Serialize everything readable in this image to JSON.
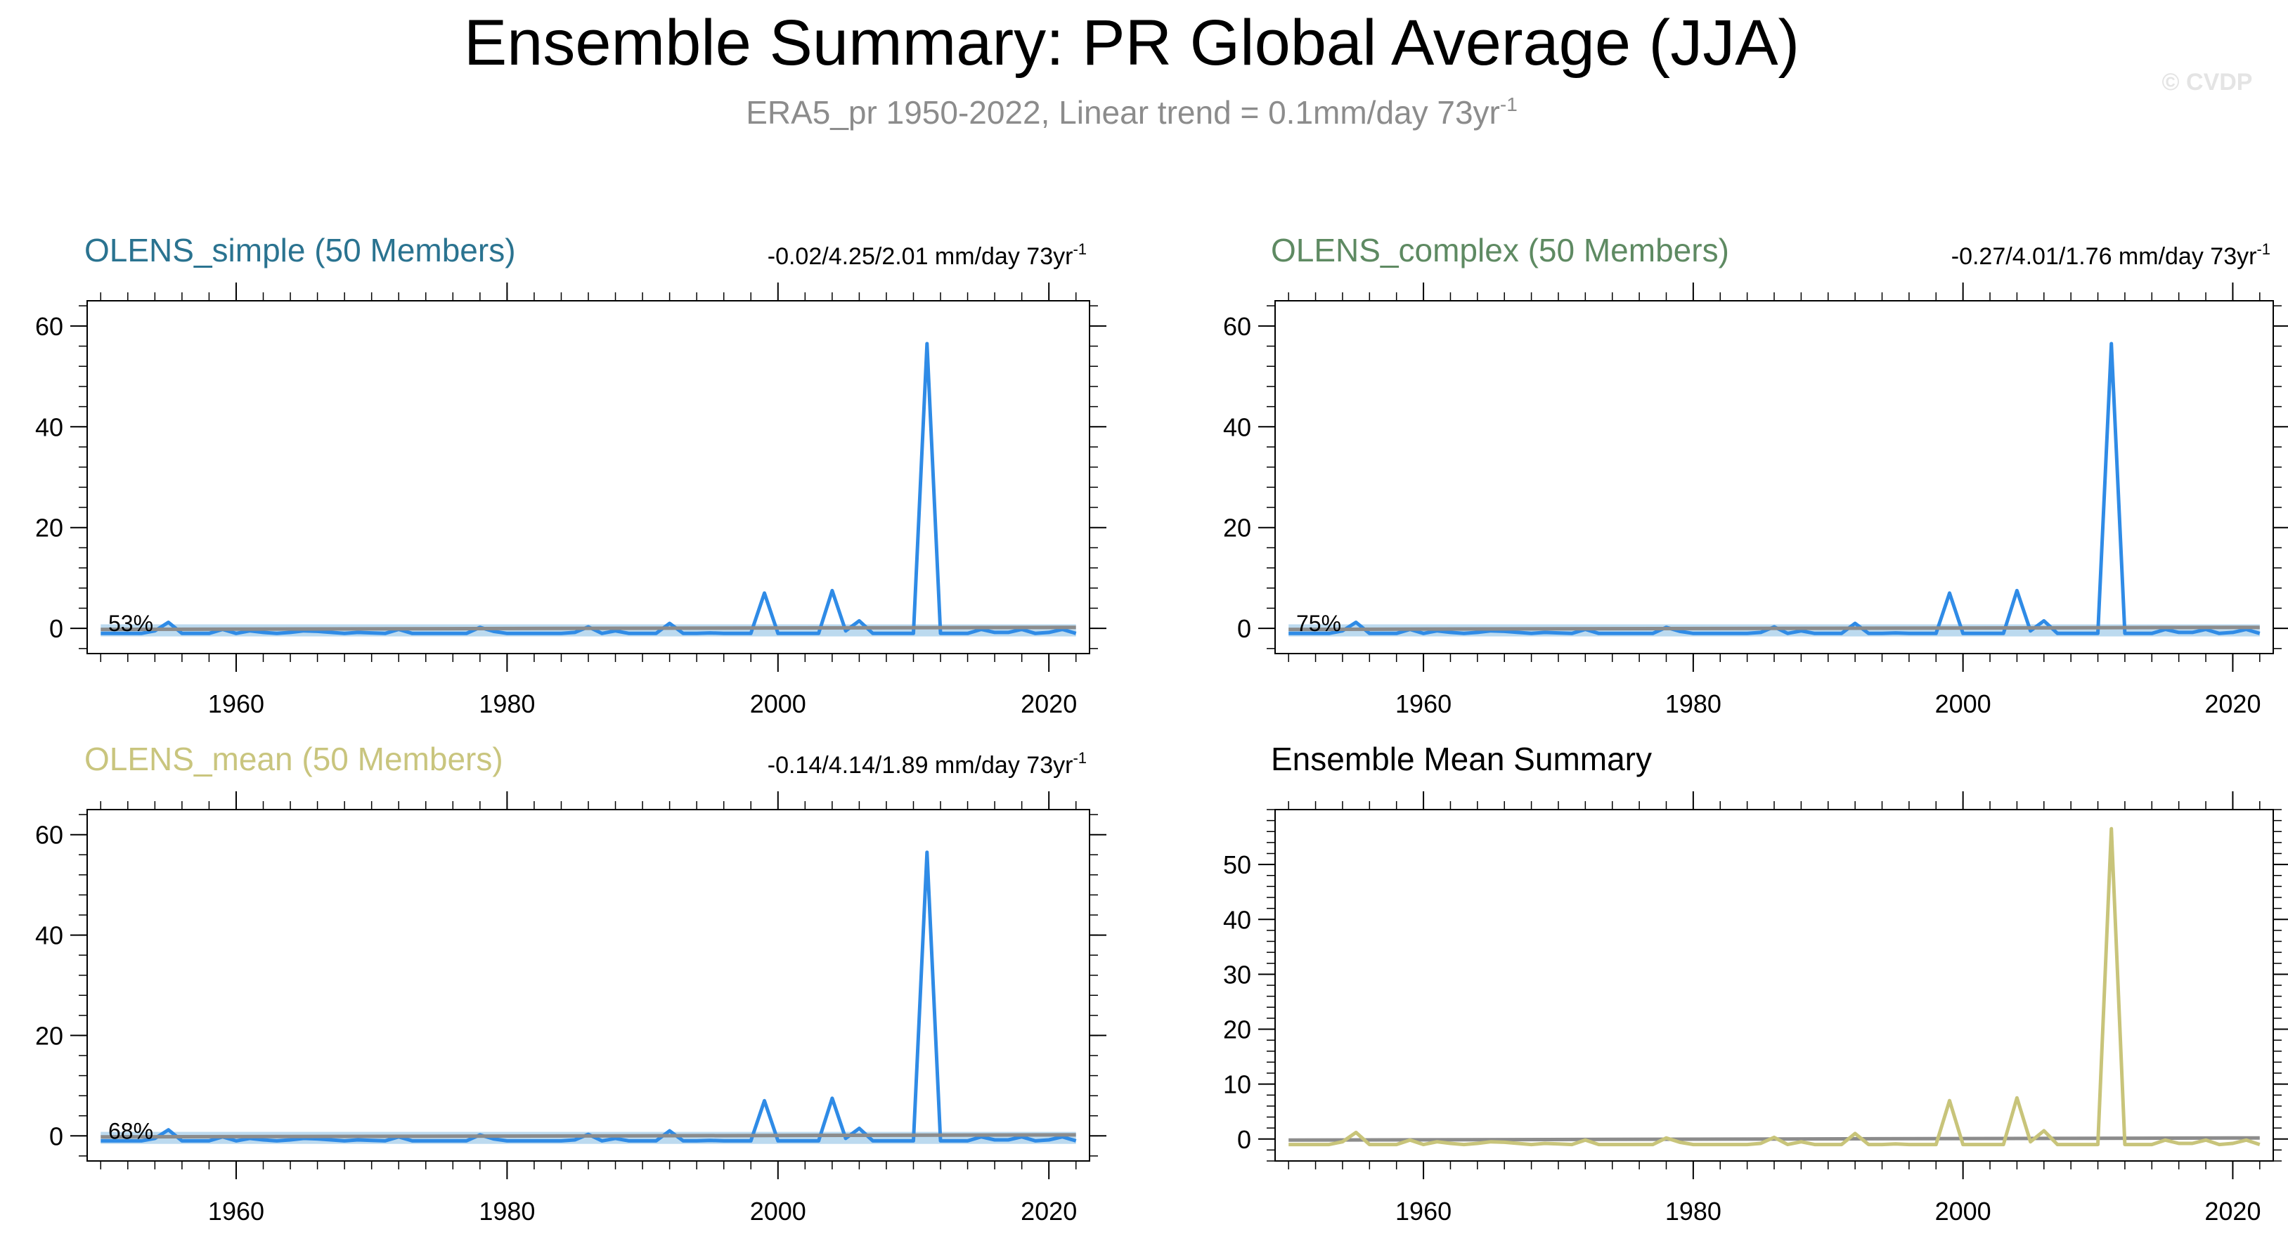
{
  "header": {
    "title": "Ensemble Summary: PR Global Average (JJA)",
    "subtitle": "ERA5_pr 1950-2022, Linear trend = 0.1mm/day 73yr",
    "subtitle_sup": "-1",
    "watermark": "© CVDP"
  },
  "colors": {
    "series_blue": "#2f8be6",
    "ensemble_tan": "#c8c47a",
    "obs_gray": "#8c8c8c",
    "band_blue": "#b0d4ec",
    "title_simple": "#2a7390",
    "title_complex": "#5e8a62",
    "title_mean": "#c9c57e"
  },
  "chart_data": [
    {
      "type": "line",
      "title": "OLENS_simple (50 Members)",
      "stats": "-0.02/4.25/2.01 mm/day 73yr",
      "stats_sup": "-1",
      "percent_label": "53%",
      "xlim": [
        1949,
        2023
      ],
      "ylim": [
        -5,
        65
      ],
      "yticks": [
        0,
        20,
        40,
        60
      ],
      "xticks": [
        1960,
        1980,
        2000,
        2020
      ],
      "series": [
        {
          "style": "member",
          "x": [
            1950,
            1951,
            1952,
            1953,
            1954,
            1955,
            1956,
            1957,
            1958,
            1959,
            1960,
            1961,
            1962,
            1963,
            1964,
            1965,
            1966,
            1967,
            1968,
            1969,
            1970,
            1971,
            1972,
            1973,
            1974,
            1975,
            1976,
            1977,
            1978,
            1979,
            1980,
            1981,
            1982,
            1983,
            1984,
            1985,
            1986,
            1987,
            1988,
            1989,
            1990,
            1991,
            1992,
            1993,
            1994,
            1995,
            1996,
            1997,
            1998,
            1999,
            2000,
            2001,
            2002,
            2003,
            2004,
            2005,
            2006,
            2007,
            2008,
            2009,
            2010,
            2011,
            2012,
            2013,
            2014,
            2015,
            2016,
            2017,
            2018,
            2019,
            2020,
            2021,
            2022
          ],
          "values": [
            -1,
            -1,
            -1,
            -1,
            -0.5,
            1.2,
            -1,
            -1,
            -1,
            -0.2,
            -1,
            -0.5,
            -0.8,
            -1,
            -0.8,
            -0.5,
            -0.6,
            -0.8,
            -1,
            -0.8,
            -0.9,
            -1,
            -0.2,
            -1,
            -1,
            -1,
            -1,
            -1,
            0.2,
            -0.6,
            -1,
            -1,
            -1,
            -1,
            -1,
            -0.8,
            0.3,
            -1,
            -0.5,
            -1,
            -1,
            -1,
            1,
            -1,
            -1,
            -0.9,
            -1,
            -1,
            -1,
            7,
            -1,
            -1,
            -1,
            -1,
            7.5,
            -0.5,
            1.5,
            -1,
            -1,
            -1,
            -1,
            56.5,
            -1,
            -1,
            -1,
            -0.2,
            -0.8,
            -0.8,
            -0.2,
            -1,
            -0.8,
            -0.2,
            -1
          ]
        },
        {
          "style": "observed",
          "x": [
            1950,
            2022
          ],
          "values": [
            -0.2,
            0.2
          ]
        }
      ]
    },
    {
      "type": "line",
      "title": "OLENS_complex (50 Members)",
      "stats": "-0.27/4.01/1.76 mm/day 73yr",
      "stats_sup": "-1",
      "percent_label": "75%",
      "xlim": [
        1949,
        2023
      ],
      "ylim": [
        -5,
        65
      ],
      "yticks": [
        0,
        20,
        40,
        60
      ],
      "xticks": [
        1960,
        1980,
        2000,
        2020
      ],
      "series": [
        {
          "style": "member",
          "x": [
            1950,
            1951,
            1952,
            1953,
            1954,
            1955,
            1956,
            1957,
            1958,
            1959,
            1960,
            1961,
            1962,
            1963,
            1964,
            1965,
            1966,
            1967,
            1968,
            1969,
            1970,
            1971,
            1972,
            1973,
            1974,
            1975,
            1976,
            1977,
            1978,
            1979,
            1980,
            1981,
            1982,
            1983,
            1984,
            1985,
            1986,
            1987,
            1988,
            1989,
            1990,
            1991,
            1992,
            1993,
            1994,
            1995,
            1996,
            1997,
            1998,
            1999,
            2000,
            2001,
            2002,
            2003,
            2004,
            2005,
            2006,
            2007,
            2008,
            2009,
            2010,
            2011,
            2012,
            2013,
            2014,
            2015,
            2016,
            2017,
            2018,
            2019,
            2020,
            2021,
            2022
          ],
          "values": [
            -1,
            -1,
            -1,
            -1,
            -0.5,
            1.2,
            -1,
            -1,
            -1,
            -0.2,
            -1,
            -0.5,
            -0.8,
            -1,
            -0.8,
            -0.5,
            -0.6,
            -0.8,
            -1,
            -0.8,
            -0.9,
            -1,
            -0.2,
            -1,
            -1,
            -1,
            -1,
            -1,
            0.2,
            -0.6,
            -1,
            -1,
            -1,
            -1,
            -1,
            -0.8,
            0.3,
            -1,
            -0.5,
            -1,
            -1,
            -1,
            1,
            -1,
            -1,
            -0.9,
            -1,
            -1,
            -1,
            7,
            -1,
            -1,
            -1,
            -1,
            7.5,
            -0.5,
            1.5,
            -1,
            -1,
            -1,
            -1,
            56.5,
            -1,
            -1,
            -1,
            -0.2,
            -0.8,
            -0.8,
            -0.2,
            -1,
            -0.8,
            -0.2,
            -1
          ]
        },
        {
          "style": "observed",
          "x": [
            1950,
            2022
          ],
          "values": [
            -0.2,
            0.2
          ]
        }
      ]
    },
    {
      "type": "line",
      "title": "OLENS_mean (50 Members)",
      "stats": "-0.14/4.14/1.89 mm/day 73yr",
      "stats_sup": "-1",
      "percent_label": "68%",
      "xlim": [
        1949,
        2023
      ],
      "ylim": [
        -5,
        65
      ],
      "yticks": [
        0,
        20,
        40,
        60
      ],
      "xticks": [
        1960,
        1980,
        2000,
        2020
      ],
      "series": [
        {
          "style": "member",
          "x": [
            1950,
            1951,
            1952,
            1953,
            1954,
            1955,
            1956,
            1957,
            1958,
            1959,
            1960,
            1961,
            1962,
            1963,
            1964,
            1965,
            1966,
            1967,
            1968,
            1969,
            1970,
            1971,
            1972,
            1973,
            1974,
            1975,
            1976,
            1977,
            1978,
            1979,
            1980,
            1981,
            1982,
            1983,
            1984,
            1985,
            1986,
            1987,
            1988,
            1989,
            1990,
            1991,
            1992,
            1993,
            1994,
            1995,
            1996,
            1997,
            1998,
            1999,
            2000,
            2001,
            2002,
            2003,
            2004,
            2005,
            2006,
            2007,
            2008,
            2009,
            2010,
            2011,
            2012,
            2013,
            2014,
            2015,
            2016,
            2017,
            2018,
            2019,
            2020,
            2021,
            2022
          ],
          "values": [
            -1,
            -1,
            -1,
            -1,
            -0.5,
            1.2,
            -1,
            -1,
            -1,
            -0.2,
            -1,
            -0.5,
            -0.8,
            -1,
            -0.8,
            -0.5,
            -0.6,
            -0.8,
            -1,
            -0.8,
            -0.9,
            -1,
            -0.2,
            -1,
            -1,
            -1,
            -1,
            -1,
            0.2,
            -0.6,
            -1,
            -1,
            -1,
            -1,
            -1,
            -0.8,
            0.3,
            -1,
            -0.5,
            -1,
            -1,
            -1,
            1,
            -1,
            -1,
            -0.9,
            -1,
            -1,
            -1,
            7,
            -1,
            -1,
            -1,
            -1,
            7.5,
            -0.5,
            1.5,
            -1,
            -1,
            -1,
            -1,
            56.5,
            -1,
            -1,
            -1,
            -0.2,
            -0.8,
            -0.8,
            -0.2,
            -1,
            -0.8,
            -0.2,
            -1
          ]
        },
        {
          "style": "observed",
          "x": [
            1950,
            2022
          ],
          "values": [
            -0.2,
            0.2
          ]
        }
      ]
    },
    {
      "type": "line",
      "title": "Ensemble Mean Summary",
      "stats": "",
      "percent_label": "",
      "xlim": [
        1949,
        2023
      ],
      "ylim": [
        -4,
        60
      ],
      "yticks": [
        0,
        10,
        20,
        30,
        40,
        50
      ],
      "xticks": [
        1960,
        1980,
        2000,
        2020
      ],
      "series": [
        {
          "style": "observed",
          "x": [
            1950,
            2022
          ],
          "values": [
            -0.2,
            0.2
          ]
        },
        {
          "style": "ensemble",
          "x": [
            1950,
            1951,
            1952,
            1953,
            1954,
            1955,
            1956,
            1957,
            1958,
            1959,
            1960,
            1961,
            1962,
            1963,
            1964,
            1965,
            1966,
            1967,
            1968,
            1969,
            1970,
            1971,
            1972,
            1973,
            1974,
            1975,
            1976,
            1977,
            1978,
            1979,
            1980,
            1981,
            1982,
            1983,
            1984,
            1985,
            1986,
            1987,
            1988,
            1989,
            1990,
            1991,
            1992,
            1993,
            1994,
            1995,
            1996,
            1997,
            1998,
            1999,
            2000,
            2001,
            2002,
            2003,
            2004,
            2005,
            2006,
            2007,
            2008,
            2009,
            2010,
            2011,
            2012,
            2013,
            2014,
            2015,
            2016,
            2017,
            2018,
            2019,
            2020,
            2021,
            2022
          ],
          "values": [
            -1,
            -1,
            -1,
            -1,
            -0.5,
            1.2,
            -1,
            -1,
            -1,
            -0.2,
            -1,
            -0.5,
            -0.8,
            -1,
            -0.8,
            -0.5,
            -0.6,
            -0.8,
            -1,
            -0.8,
            -0.9,
            -1,
            -0.2,
            -1,
            -1,
            -1,
            -1,
            -1,
            0.2,
            -0.6,
            -1,
            -1,
            -1,
            -1,
            -1,
            -0.8,
            0.3,
            -1,
            -0.5,
            -1,
            -1,
            -1,
            1,
            -1,
            -1,
            -0.9,
            -1,
            -1,
            -1,
            7,
            -1,
            -1,
            -1,
            -1,
            7.5,
            -0.5,
            1.5,
            -1,
            -1,
            -1,
            -1,
            56.5,
            -1,
            -1,
            -1,
            -0.2,
            -0.8,
            -0.8,
            -0.2,
            -1,
            -0.8,
            -0.2,
            -1
          ]
        }
      ]
    }
  ]
}
